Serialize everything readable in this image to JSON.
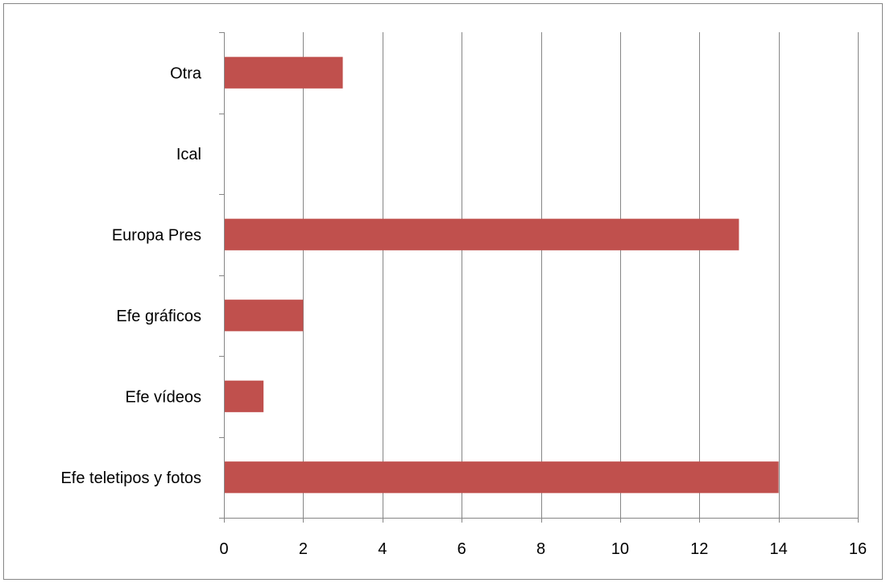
{
  "chart_data": {
    "type": "bar",
    "orientation": "horizontal",
    "categories": [
      "Otra",
      "Ical",
      "Europa Pres",
      "Efe gráficos",
      "Efe vídeos",
      "Efe teletipos y fotos"
    ],
    "values": [
      3,
      0,
      13,
      2,
      1,
      14
    ],
    "xlim": [
      0,
      16
    ],
    "x_ticks": [
      "0",
      "2",
      "4",
      "6",
      "8",
      "10",
      "12",
      "14",
      "16"
    ],
    "grid": "vertical",
    "legend": "none",
    "bar_color": "#c0504d",
    "grid_color": "#868686",
    "border_color": "#868686",
    "label_color": "#000000"
  }
}
